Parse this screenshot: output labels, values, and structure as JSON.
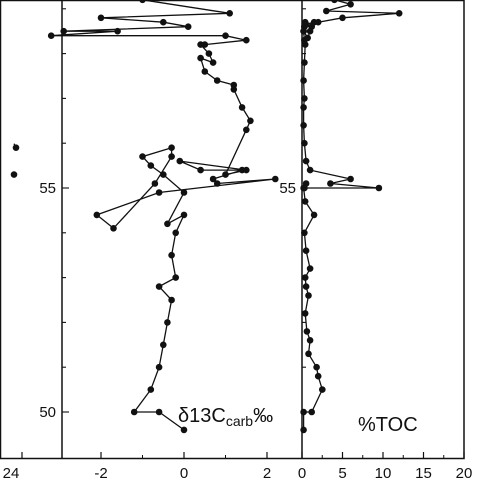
{
  "chart_data": [
    {
      "type": "line",
      "label_prefix": "δ13C",
      "label_subscript": "carb",
      "label_suffix": "‰",
      "ylim": [
        49.5,
        59.3
      ],
      "xlim": [
        -3,
        3
      ],
      "xticks": [
        -2,
        0,
        2
      ],
      "xtick_labels": [
        "-2",
        "0",
        "2"
      ],
      "edge_tick_label": "24",
      "yticks": [
        50,
        55
      ],
      "ytick_labels": [
        "50",
        "55"
      ],
      "grid": false,
      "series": [
        {
          "x": [
            0.0,
            -0.6,
            -1.2,
            -0.8,
            -0.6,
            -0.5,
            -0.4,
            -0.3,
            -0.6,
            -0.2,
            -0.3,
            -0.2,
            0.0,
            -0.4,
            0.0,
            -0.5,
            -0.8,
            -1.0,
            -0.3,
            -0.3,
            -0.7,
            -1.7,
            -2.1,
            -0.6,
            2.2,
            0.8,
            0.7,
            1.4,
            0.4,
            -0.1,
            1.5,
            1.0,
            1.5,
            1.6,
            1.4,
            1.2,
            1.2,
            0.8,
            0.5,
            0.4,
            0.7,
            0.6,
            0.4,
            0.5,
            1.5,
            1.0,
            -3.2,
            -1.6,
            -2.9,
            0.1,
            -0.5,
            -2.0,
            1.1,
            -1.0,
            1.8
          ],
          "y": [
            49.6,
            50.0,
            50.0,
            50.5,
            51.0,
            51.5,
            52.0,
            52.5,
            52.8,
            53.0,
            53.5,
            54.0,
            54.4,
            54.2,
            54.9,
            55.3,
            55.5,
            55.7,
            55.9,
            55.7,
            55.1,
            54.1,
            54.4,
            54.9,
            55.2,
            55.1,
            55.2,
            55.4,
            55.4,
            55.6,
            55.4,
            55.3,
            56.3,
            56.5,
            56.8,
            57.2,
            57.3,
            57.4,
            57.6,
            57.9,
            57.8,
            58.0,
            58.2,
            58.2,
            58.3,
            58.4,
            58.4,
            58.5,
            58.5,
            58.6,
            58.7,
            58.8,
            58.9,
            59.2,
            59.3
          ]
        }
      ]
    },
    {
      "type": "line",
      "label": "%TOC",
      "ylim": [
        49.5,
        59.3
      ],
      "xlim": [
        0,
        20
      ],
      "xticks": [
        0,
        5,
        10,
        15,
        20
      ],
      "xtick_labels": [
        "0",
        "5",
        "10",
        "15",
        "20"
      ],
      "yticks": [
        55
      ],
      "ytick_labels": [
        "55"
      ],
      "grid": false,
      "series": [
        {
          "x": [
            0.2,
            0.2,
            1.2,
            2.5,
            2.0,
            1.8,
            0.8,
            1.0,
            0.6,
            0.4,
            0.8,
            0.5,
            0.4,
            1.0,
            0.5,
            0.3,
            1.5,
            0.4,
            0.2,
            0.5,
            0.3,
            9.5,
            3.5,
            6.0,
            1.0,
            0.5,
            0.3,
            0.2,
            0.2,
            0.3,
            0.2,
            0.3,
            0.4,
            0.3,
            0.2,
            0.3,
            0.4,
            0.5,
            0.3,
            0.2,
            0.7,
            1.0,
            1.5,
            0.4,
            1.2,
            2.0,
            5.0,
            12.0,
            3.0,
            6.0,
            4.0,
            3.5,
            3.0
          ],
          "y": [
            49.6,
            50.0,
            50.0,
            50.5,
            50.8,
            51.0,
            51.3,
            51.6,
            51.8,
            52.2,
            52.6,
            52.8,
            53.0,
            53.2,
            53.6,
            54.0,
            54.4,
            54.7,
            55.0,
            55.1,
            55.0,
            55.0,
            55.1,
            55.2,
            55.4,
            55.6,
            56.0,
            56.4,
            56.8,
            57.0,
            57.4,
            57.8,
            58.2,
            58.3,
            58.5,
            58.6,
            58.7,
            58.65,
            58.6,
            58.5,
            58.35,
            58.5,
            58.7,
            58.65,
            58.6,
            58.7,
            58.8,
            58.9,
            58.95,
            59.1,
            59.2,
            59.3,
            59.3
          ]
        }
      ]
    }
  ],
  "left_partial": {
    "x": [
      24.3,
      24.4
    ],
    "y": [
      55.9,
      55.3
    ]
  }
}
